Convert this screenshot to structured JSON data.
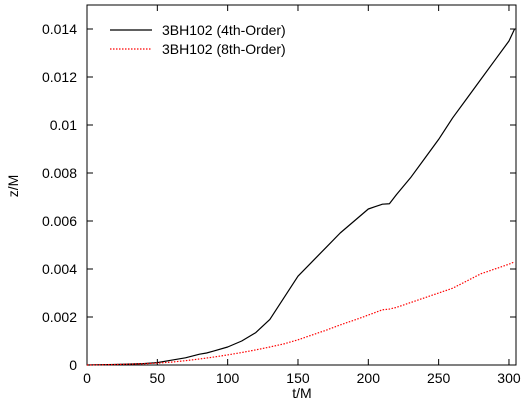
{
  "chart_data": {
    "type": "line",
    "title": "",
    "xlabel": "t/M",
    "ylabel": "z/M",
    "xlim": [
      0,
      305
    ],
    "ylim": [
      0,
      0.015
    ],
    "grid": false,
    "legend_position": "top-left",
    "x_ticks": [
      "0",
      "50",
      "100",
      "150",
      "200",
      "250",
      "300"
    ],
    "y_ticks": [
      "0",
      "0.002",
      "0.004",
      "0.006",
      "0.008",
      "0.01",
      "0.012",
      "0.014"
    ],
    "series": [
      {
        "name": "3BH102 (4th-Order)",
        "color": "#000000",
        "dash": "solid",
        "x": [
          0,
          20,
          40,
          50,
          60,
          70,
          80,
          85,
          90,
          100,
          110,
          120,
          130,
          140,
          150,
          160,
          170,
          180,
          190,
          200,
          205,
          210,
          215,
          220,
          230,
          240,
          250,
          260,
          270,
          280,
          290,
          300,
          304
        ],
        "y": [
          0.0,
          2e-05,
          6e-05,
          0.0001,
          0.0002,
          0.0003,
          0.00045,
          0.0005,
          0.00058,
          0.00075,
          0.001,
          0.00135,
          0.0019,
          0.0028,
          0.0037,
          0.0043,
          0.0049,
          0.0055,
          0.006,
          0.0065,
          0.0066,
          0.0067,
          0.00672,
          0.0071,
          0.0078,
          0.0086,
          0.0094,
          0.0103,
          0.0111,
          0.0119,
          0.0127,
          0.0135,
          0.014
        ]
      },
      {
        "name": "3BH102 (8th-Order)",
        "color": "#ff0000",
        "dash": "dotted",
        "x": [
          0,
          20,
          40,
          50,
          60,
          70,
          80,
          90,
          100,
          110,
          120,
          130,
          140,
          150,
          160,
          170,
          180,
          190,
          200,
          210,
          215,
          220,
          230,
          240,
          250,
          260,
          270,
          280,
          290,
          300,
          304
        ],
        "y": [
          0.0,
          2e-05,
          5e-05,
          8e-05,
          0.00012,
          0.00018,
          0.00025,
          0.00033,
          0.00042,
          0.00052,
          0.00063,
          0.00075,
          0.00088,
          0.00105,
          0.00125,
          0.00145,
          0.00167,
          0.00187,
          0.00208,
          0.0023,
          0.00233,
          0.0024,
          0.0026,
          0.0028,
          0.003,
          0.0032,
          0.0035,
          0.0038,
          0.004,
          0.0042,
          0.0043
        ]
      }
    ]
  }
}
